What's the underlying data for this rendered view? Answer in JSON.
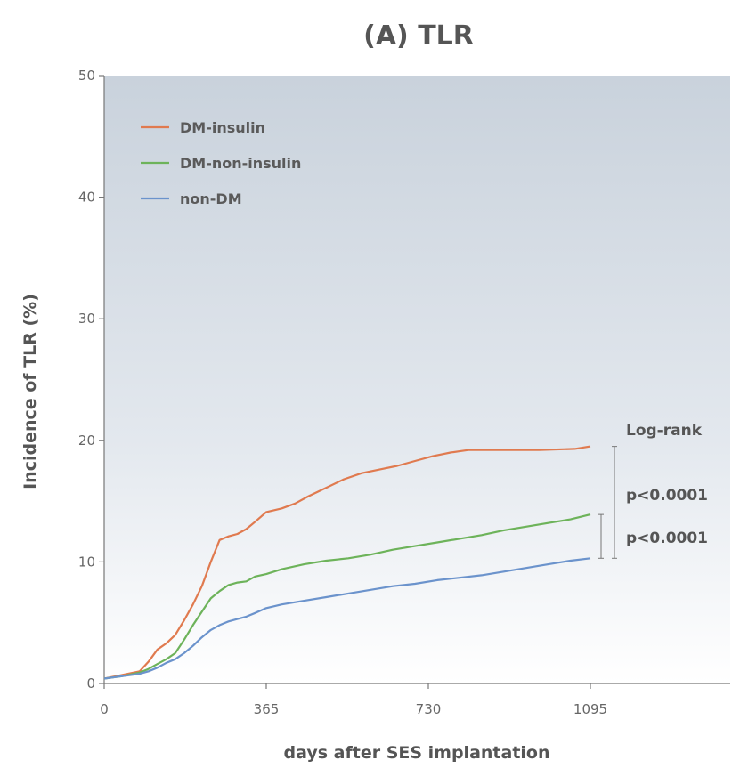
{
  "chart_data": {
    "type": "line",
    "title": "(A) TLR",
    "xlabel": "days after SES implantation",
    "ylabel": "Incidence of TLR (%)",
    "xlim": [
      0,
      1300
    ],
    "ylim": [
      0,
      50
    ],
    "xticks": [
      "0",
      "365",
      "730",
      "1095"
    ],
    "yticks": [
      "0",
      "10",
      "20",
      "30",
      "40",
      "50"
    ],
    "grid": false,
    "legend_position": "top-left",
    "series": [
      {
        "name": "DM-insulin",
        "color": "#e07a4f",
        "points": [
          [
            0,
            0.4
          ],
          [
            40,
            0.7
          ],
          [
            80,
            1.0
          ],
          [
            100,
            1.8
          ],
          [
            120,
            2.8
          ],
          [
            140,
            3.3
          ],
          [
            160,
            4.0
          ],
          [
            180,
            5.2
          ],
          [
            200,
            6.5
          ],
          [
            220,
            8.0
          ],
          [
            240,
            10.0
          ],
          [
            260,
            11.8
          ],
          [
            280,
            12.1
          ],
          [
            300,
            12.3
          ],
          [
            320,
            12.7
          ],
          [
            340,
            13.3
          ],
          [
            365,
            14.1
          ],
          [
            400,
            14.4
          ],
          [
            430,
            14.8
          ],
          [
            460,
            15.4
          ],
          [
            500,
            16.1
          ],
          [
            540,
            16.8
          ],
          [
            580,
            17.3
          ],
          [
            620,
            17.6
          ],
          [
            660,
            17.9
          ],
          [
            700,
            18.3
          ],
          [
            740,
            18.7
          ],
          [
            780,
            19.0
          ],
          [
            820,
            19.2
          ],
          [
            900,
            19.2
          ],
          [
            980,
            19.2
          ],
          [
            1060,
            19.3
          ],
          [
            1095,
            19.5
          ]
        ]
      },
      {
        "name": "DM-non-insulin",
        "color": "#6db35a",
        "points": [
          [
            0,
            0.4
          ],
          [
            40,
            0.6
          ],
          [
            80,
            0.9
          ],
          [
            100,
            1.2
          ],
          [
            120,
            1.6
          ],
          [
            140,
            2.0
          ],
          [
            160,
            2.5
          ],
          [
            180,
            3.6
          ],
          [
            200,
            4.8
          ],
          [
            220,
            5.9
          ],
          [
            240,
            7.0
          ],
          [
            260,
            7.6
          ],
          [
            280,
            8.1
          ],
          [
            300,
            8.3
          ],
          [
            320,
            8.4
          ],
          [
            340,
            8.8
          ],
          [
            365,
            9.0
          ],
          [
            400,
            9.4
          ],
          [
            450,
            9.8
          ],
          [
            500,
            10.1
          ],
          [
            550,
            10.3
          ],
          [
            600,
            10.6
          ],
          [
            650,
            11.0
          ],
          [
            700,
            11.3
          ],
          [
            750,
            11.6
          ],
          [
            800,
            11.9
          ],
          [
            850,
            12.2
          ],
          [
            900,
            12.6
          ],
          [
            950,
            12.9
          ],
          [
            1000,
            13.2
          ],
          [
            1050,
            13.5
          ],
          [
            1095,
            13.9
          ]
        ]
      },
      {
        "name": "non-DM",
        "color": "#6b93cc",
        "points": [
          [
            0,
            0.4
          ],
          [
            40,
            0.6
          ],
          [
            80,
            0.8
          ],
          [
            100,
            1.0
          ],
          [
            120,
            1.3
          ],
          [
            140,
            1.7
          ],
          [
            160,
            2.0
          ],
          [
            180,
            2.5
          ],
          [
            200,
            3.1
          ],
          [
            220,
            3.8
          ],
          [
            240,
            4.4
          ],
          [
            260,
            4.8
          ],
          [
            280,
            5.1
          ],
          [
            300,
            5.3
          ],
          [
            320,
            5.5
          ],
          [
            340,
            5.8
          ],
          [
            365,
            6.2
          ],
          [
            400,
            6.5
          ],
          [
            450,
            6.8
          ],
          [
            500,
            7.1
          ],
          [
            550,
            7.4
          ],
          [
            600,
            7.7
          ],
          [
            650,
            8.0
          ],
          [
            700,
            8.2
          ],
          [
            750,
            8.5
          ],
          [
            800,
            8.7
          ],
          [
            850,
            8.9
          ],
          [
            900,
            9.2
          ],
          [
            950,
            9.5
          ],
          [
            1000,
            9.8
          ],
          [
            1050,
            10.1
          ],
          [
            1095,
            10.3
          ]
        ]
      }
    ],
    "annotations": {
      "logrank": "Log-rank",
      "p1": "p<0.0001",
      "p2": "p<0.0001"
    }
  }
}
